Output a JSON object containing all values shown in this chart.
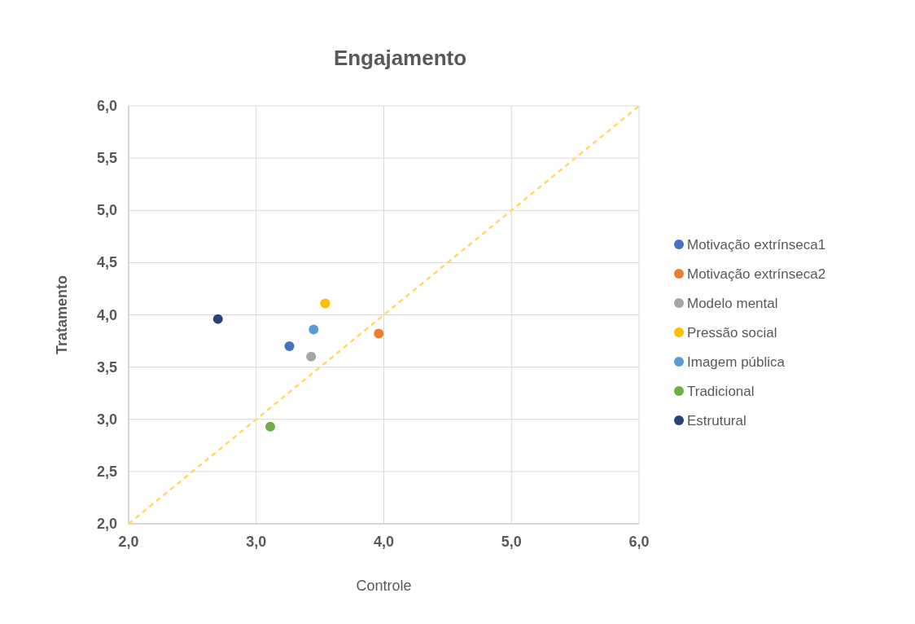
{
  "chart_data": {
    "type": "scatter",
    "title": "Engajamento",
    "xlabel": "Controle",
    "ylabel": "Tratamento",
    "xlim": [
      2,
      6
    ],
    "ylim": [
      2,
      6
    ],
    "xticks": [
      {
        "value": 2,
        "label": "2,0"
      },
      {
        "value": 3,
        "label": "3,0"
      },
      {
        "value": 4,
        "label": "4,0"
      },
      {
        "value": 5,
        "label": "5,0"
      },
      {
        "value": 6,
        "label": "6,0"
      }
    ],
    "yticks": [
      {
        "value": 2,
        "label": "2,0"
      },
      {
        "value": 2.5,
        "label": "2,5"
      },
      {
        "value": 3,
        "label": "3,0"
      },
      {
        "value": 3.5,
        "label": "3,5"
      },
      {
        "value": 4,
        "label": "4,0"
      },
      {
        "value": 4.5,
        "label": "4,5"
      },
      {
        "value": 5,
        "label": "5,0"
      },
      {
        "value": 5.5,
        "label": "5,5"
      },
      {
        "value": 6,
        "label": "6,0"
      }
    ],
    "grid": true,
    "legend": "right",
    "series": [
      {
        "name": "Motivação extrínseca1",
        "color": "#4472c4",
        "marker": "circle",
        "x": [
          3.26
        ],
        "values": [
          3.7
        ]
      },
      {
        "name": "Motivação extrínseca2",
        "color": "#ed7d31",
        "marker": "circle",
        "x": [
          3.96
        ],
        "values": [
          3.82
        ]
      },
      {
        "name": "Modelo mental",
        "color": "#a5a5a5",
        "marker": "circle",
        "x": [
          3.43
        ],
        "values": [
          3.6
        ]
      },
      {
        "name": "Pressão social",
        "color": "#ffc000",
        "marker": "circle",
        "x": [
          3.54
        ],
        "values": [
          4.11
        ]
      },
      {
        "name": "Imagem pública",
        "color": "#5b9bd5",
        "marker": "circle",
        "x": [
          3.45
        ],
        "values": [
          3.86
        ]
      },
      {
        "name": "Tradicional",
        "color": "#70ad47",
        "marker": "circle",
        "x": [
          3.11
        ],
        "values": [
          2.93
        ]
      },
      {
        "name": "Estrutural",
        "color": "#264478",
        "marker": "circle",
        "x": [
          2.7
        ],
        "values": [
          3.96
        ]
      },
      {
        "type": "line",
        "color": "#ffd966",
        "line_style": "dashed",
        "marker": "none",
        "x": [
          2,
          6
        ],
        "values": [
          2,
          6
        ]
      }
    ]
  }
}
